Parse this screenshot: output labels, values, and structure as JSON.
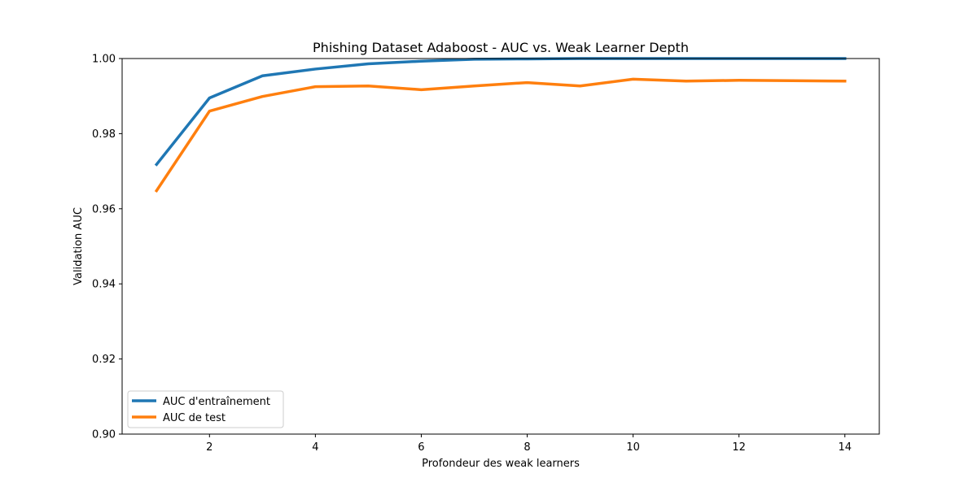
{
  "chart_data": {
    "type": "line",
    "title": "Phishing Dataset Adaboost - AUC vs. Weak Learner Depth",
    "xlabel": "Profondeur des weak learners",
    "ylabel": "Validation AUC",
    "xlim": [
      0.35,
      14.65
    ],
    "ylim": [
      0.9,
      1.0
    ],
    "xticks": [
      2,
      4,
      6,
      8,
      10,
      12,
      14
    ],
    "yticks": [
      0.9,
      0.92,
      0.94,
      0.96,
      0.98,
      1.0
    ],
    "grid": false,
    "legend_position": "lower-left",
    "x": [
      1,
      2,
      3,
      4,
      5,
      6,
      7,
      8,
      9,
      10,
      11,
      12,
      13,
      14
    ],
    "series": [
      {
        "name": "AUC d'entraînement",
        "color": "#1f77b4",
        "values": [
          0.9718,
          0.9895,
          0.9954,
          0.9972,
          0.9986,
          0.9993,
          0.9998,
          0.9999,
          1.0,
          1.0,
          1.0,
          1.0,
          1.0,
          1.0
        ]
      },
      {
        "name": "AUC de test",
        "color": "#ff7f0e",
        "values": [
          0.9648,
          0.986,
          0.9899,
          0.9925,
          0.9927,
          0.9917,
          0.9927,
          0.9936,
          0.9927,
          0.9945,
          0.994,
          0.9942,
          0.9941,
          0.994
        ]
      }
    ]
  }
}
